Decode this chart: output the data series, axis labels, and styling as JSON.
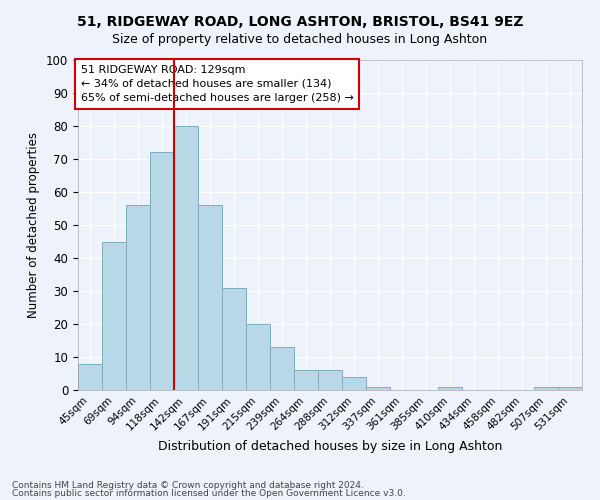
{
  "title": "51, RIDGEWAY ROAD, LONG ASHTON, BRISTOL, BS41 9EZ",
  "subtitle": "Size of property relative to detached houses in Long Ashton",
  "xlabel": "Distribution of detached houses by size in Long Ashton",
  "ylabel": "Number of detached properties",
  "footnote1": "Contains HM Land Registry data © Crown copyright and database right 2024.",
  "footnote2": "Contains public sector information licensed under the Open Government Licence v3.0.",
  "categories": [
    "45sqm",
    "69sqm",
    "94sqm",
    "118sqm",
    "142sqm",
    "167sqm",
    "191sqm",
    "215sqm",
    "239sqm",
    "264sqm",
    "288sqm",
    "312sqm",
    "337sqm",
    "361sqm",
    "385sqm",
    "410sqm",
    "434sqm",
    "458sqm",
    "482sqm",
    "507sqm",
    "531sqm"
  ],
  "values": [
    8,
    45,
    56,
    72,
    80,
    56,
    31,
    20,
    13,
    6,
    6,
    4,
    1,
    0,
    0,
    1,
    0,
    0,
    0,
    1,
    1
  ],
  "bar_color": "#b8d8e8",
  "bar_edge_color": "#7aafc8",
  "background_color": "#eef2fb",
  "grid_color": "#ffffff",
  "vline_x": 3.5,
  "vline_color": "#cc0000",
  "annotation_text": "51 RIDGEWAY ROAD: 129sqm\n← 34% of detached houses are smaller (134)\n65% of semi-detached houses are larger (258) →",
  "annotation_box_color": "#ffffff",
  "annotation_box_edge": "#cc0000",
  "ylim": [
    0,
    100
  ],
  "yticks": [
    0,
    10,
    20,
    30,
    40,
    50,
    60,
    70,
    80,
    90,
    100
  ]
}
